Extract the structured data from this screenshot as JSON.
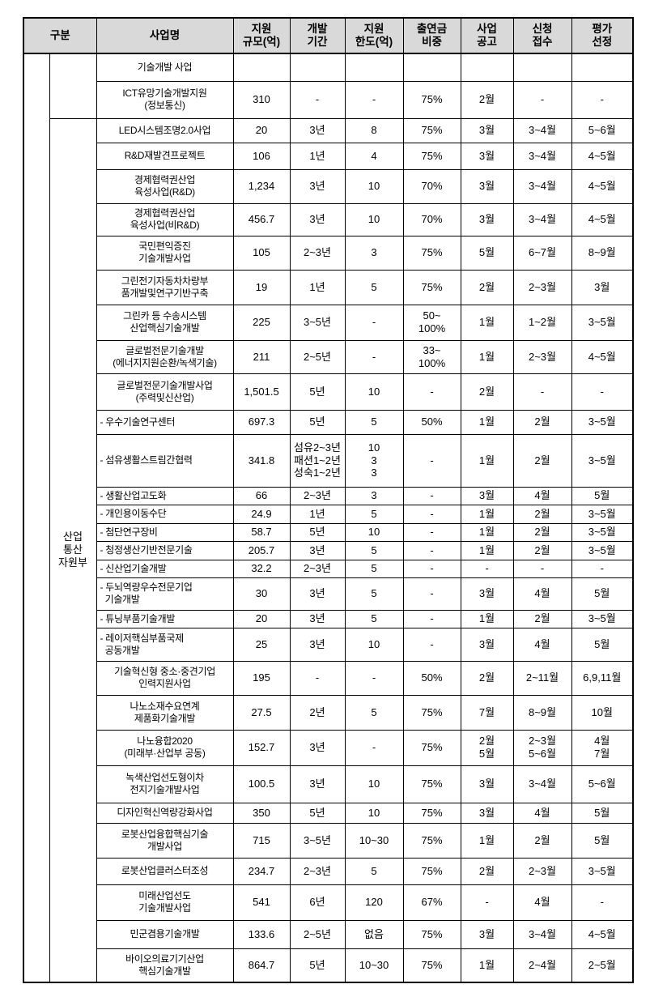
{
  "colors": {
    "page_bg": "#ffffff",
    "header_bg": "#d9d9d9",
    "border": "#000000",
    "text": "#000000"
  },
  "table": {
    "headers": [
      {
        "key": "gubun",
        "label": "구분"
      },
      {
        "key": "name",
        "label": "사업명"
      },
      {
        "key": "scale",
        "label": "지원\n규모(억)"
      },
      {
        "key": "period",
        "label": "개발\n기간"
      },
      {
        "key": "limit",
        "label": "지원\n한도(억)"
      },
      {
        "key": "ratio",
        "label": "출연금\n비중"
      },
      {
        "key": "notice",
        "label": "사업\n공고"
      },
      {
        "key": "apply",
        "label": "신청\n접수"
      },
      {
        "key": "eval",
        "label": "평가\n선정"
      }
    ],
    "group_label": "산업\n통산\n자원부",
    "rows": [
      {
        "name": "기술개발 사업",
        "scale": "",
        "period": "",
        "limit": "",
        "ratio": "",
        "notice": "",
        "apply": "",
        "eval": ""
      },
      {
        "name": "ICT유망기술개발지원\n(정보통신)",
        "scale": "310",
        "period": "-",
        "limit": "-",
        "ratio": "75%",
        "notice": "2월",
        "apply": "-",
        "eval": "-"
      },
      {
        "name": "LED시스템조명2.0사업",
        "scale": "20",
        "period": "3년",
        "limit": "8",
        "ratio": "75%",
        "notice": "3월",
        "apply": "3~4월",
        "eval": "5~6월"
      },
      {
        "name": "R&D재발견프로젝트",
        "scale": "106",
        "period": "1년",
        "limit": "4",
        "ratio": "75%",
        "notice": "3월",
        "apply": "3~4월",
        "eval": "4~5월"
      },
      {
        "name": "경제협력권산업\n육성사업(R&D)",
        "scale": "1,234",
        "period": "3년",
        "limit": "10",
        "ratio": "70%",
        "notice": "3월",
        "apply": "3~4월",
        "eval": "4~5월"
      },
      {
        "name": "경제협력권산업\n육성사업(비R&D)",
        "scale": "456.7",
        "period": "3년",
        "limit": "10",
        "ratio": "70%",
        "notice": "3월",
        "apply": "3~4월",
        "eval": "4~5월"
      },
      {
        "name": "국민편익증진\n기술개발사업",
        "scale": "105",
        "period": "2~3년",
        "limit": "3",
        "ratio": "75%",
        "notice": "5월",
        "apply": "6~7월",
        "eval": "8~9월"
      },
      {
        "name": "그린전기자동차차량부\n품개발및연구기반구축",
        "scale": "19",
        "period": "1년",
        "limit": "5",
        "ratio": "75%",
        "notice": "2월",
        "apply": "2~3월",
        "eval": "3월"
      },
      {
        "name": "그린카 등 수송시스템\n산업핵심기술개발",
        "scale": "225",
        "period": "3~5년",
        "limit": "-",
        "ratio": "50~\n100%",
        "notice": "1월",
        "apply": "1~2월",
        "eval": "3~5월"
      },
      {
        "name": "글로벌전문기술개발\n(에너지지원순환/녹색기술)",
        "scale": "211",
        "period": "2~5년",
        "limit": "-",
        "ratio": "33~\n100%",
        "notice": "1월",
        "apply": "2~3월",
        "eval": "4~5월"
      },
      {
        "name": "글로벌전문기술개발사업\n(주력및신산업)",
        "scale": "1,501.5",
        "period": "5년",
        "limit": "10",
        "ratio": "-",
        "notice": "2월",
        "apply": "-",
        "eval": "-"
      },
      {
        "name": "- 우수기술연구센터",
        "scale": "697.3",
        "period": "5년",
        "limit": "5",
        "ratio": "50%",
        "notice": "1월",
        "apply": "2월",
        "eval": "3~5월"
      },
      {
        "name": "- 섬유생활스트림간협력",
        "scale": "341.8",
        "period": "섬유2~3년\n패션1~2년\n성숙1~2년",
        "limit": "10\n3\n3",
        "ratio": "-",
        "notice": "1월",
        "apply": "2월",
        "eval": "3~5월"
      },
      {
        "name": "- 생활산업고도화",
        "scale": "66",
        "period": "2~3년",
        "limit": "3",
        "ratio": "-",
        "notice": "3월",
        "apply": "4월",
        "eval": "5월"
      },
      {
        "name": "- 개인용이동수단",
        "scale": "24.9",
        "period": "1년",
        "limit": "5",
        "ratio": "-",
        "notice": "1월",
        "apply": "2월",
        "eval": "3~5월"
      },
      {
        "name": "- 첨단연구장비",
        "scale": "58.7",
        "period": "5년",
        "limit": "10",
        "ratio": "-",
        "notice": "1월",
        "apply": "2월",
        "eval": "3~5월"
      },
      {
        "name": "- 청정생산기반전문기술",
        "scale": "205.7",
        "period": "3년",
        "limit": "5",
        "ratio": "-",
        "notice": "1월",
        "apply": "2월",
        "eval": "3~5월"
      },
      {
        "name": "- 신산업기술개발",
        "scale": "32.2",
        "period": "2~3년",
        "limit": "5",
        "ratio": "-",
        "notice": "-",
        "apply": "-",
        "eval": "-"
      },
      {
        "name": "- 두뇌역량우수전문기업\n  기술개발",
        "scale": "30",
        "period": "3년",
        "limit": "5",
        "ratio": "-",
        "notice": "3월",
        "apply": "4월",
        "eval": "5월"
      },
      {
        "name": "- 튜닝부품기술개발",
        "scale": "20",
        "period": "3년",
        "limit": "5",
        "ratio": "-",
        "notice": "1월",
        "apply": "2월",
        "eval": "3~5월"
      },
      {
        "name": "- 레이저핵심부품국제\n  공동개발",
        "scale": "25",
        "period": "3년",
        "limit": "10",
        "ratio": "-",
        "notice": "3월",
        "apply": "4월",
        "eval": "5월"
      },
      {
        "name": "기술혁신형 중소·중견기업\n인력지원사업",
        "scale": "195",
        "period": "-",
        "limit": "-",
        "ratio": "50%",
        "notice": "2월",
        "apply": "2~11월",
        "eval": "6,9,11월"
      },
      {
        "name": "나노소재수요연계\n제품화기술개발",
        "scale": "27.5",
        "period": "2년",
        "limit": "5",
        "ratio": "75%",
        "notice": "7월",
        "apply": "8~9월",
        "eval": "10월"
      },
      {
        "name": "나노융합2020\n(미래부·산업부 공동)",
        "scale": "152.7",
        "period": "3년",
        "limit": "-",
        "ratio": "75%",
        "notice": "2월\n5월",
        "apply": "2~3월\n5~6월",
        "eval": "4월\n7월"
      },
      {
        "name": "녹색산업선도형이차\n전지기술개발사업",
        "scale": "100.5",
        "period": "3년",
        "limit": "10",
        "ratio": "75%",
        "notice": "3월",
        "apply": "3~4월",
        "eval": "5~6월"
      },
      {
        "name": "디자인혁신역량강화사업",
        "scale": "350",
        "period": "5년",
        "limit": "10",
        "ratio": "75%",
        "notice": "3월",
        "apply": "4월",
        "eval": "5월"
      },
      {
        "name": "로봇산업융합핵심기술\n개발사업",
        "scale": "715",
        "period": "3~5년",
        "limit": "10~30",
        "ratio": "75%",
        "notice": "1월",
        "apply": "2월",
        "eval": "5월"
      },
      {
        "name": "로봇산업클러스터조성",
        "scale": "234.7",
        "period": "2~3년",
        "limit": "5",
        "ratio": "75%",
        "notice": "2월",
        "apply": "2~3월",
        "eval": "3~5월"
      },
      {
        "name": "미래산업선도\n기술개발사업",
        "scale": "541",
        "period": "6년",
        "limit": "120",
        "ratio": "67%",
        "notice": "-",
        "apply": "4월",
        "eval": "-"
      },
      {
        "name": "민군겸용기술개발",
        "scale": "133.6",
        "period": "2~5년",
        "limit": "없음",
        "ratio": "75%",
        "notice": "3월",
        "apply": "3~4월",
        "eval": "4~5월"
      },
      {
        "name": "바이오의료기기산업\n핵심기술개발",
        "scale": "864.7",
        "period": "5년",
        "limit": "10~30",
        "ratio": "75%",
        "notice": "1월",
        "apply": "2~4월",
        "eval": "2~5월"
      }
    ]
  }
}
